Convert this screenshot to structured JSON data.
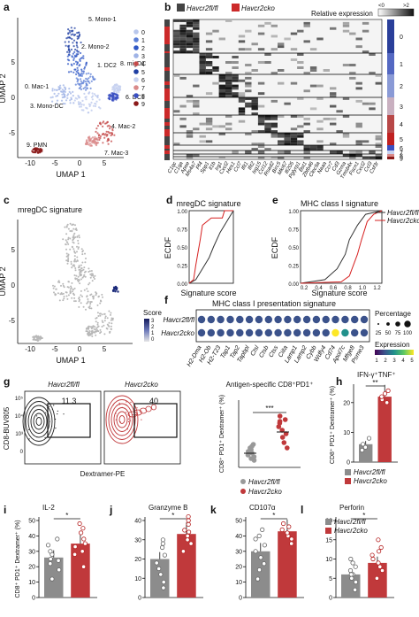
{
  "panels": {
    "a": {
      "letter": "a",
      "xlabel": "UMAP 1",
      "ylabel": "UMAP 2",
      "xticks": [
        "-10",
        "-5",
        "0",
        "5"
      ],
      "yticks": [
        "-5",
        "0",
        "5"
      ],
      "clusters": [
        {
          "label": "5. Mono-1",
          "color": "#1f3fa3"
        },
        {
          "label": "2. Mono-2",
          "color": "#2f57c5"
        },
        {
          "label": "1. DC2",
          "color": "#5c7fd6"
        },
        {
          "label": "8. migDC",
          "color": "#3a4fc2"
        },
        {
          "label": "3. Mono-DC",
          "color": "#9fb3e6"
        },
        {
          "label": "6. DC1",
          "color": "#c7d2f0"
        },
        {
          "label": "0. Mac-1",
          "color": "#b9c7ec"
        },
        {
          "label": "4. Mac-2",
          "color": "#c44a4a"
        },
        {
          "label": "7. Mac-3",
          "color": "#d98a8a"
        },
        {
          "label": "9. PMN",
          "color": "#8b1a1a"
        }
      ],
      "legend_numbers": [
        "0",
        "1",
        "2",
        "3",
        "4",
        "5",
        "6",
        "7",
        "8",
        "9"
      ]
    },
    "b": {
      "letter": "b",
      "legend_items": [
        {
          "label": "Havcr2fl/fl",
          "color": "#444444"
        },
        {
          "label": "Havcr2cko",
          "color": "#cc2a2a"
        }
      ],
      "relexp_label": "Relative expression",
      "relexp_min": "<0",
      "relexp_max": ">2",
      "cluster_numbers": [
        "0",
        "1",
        "2",
        "3",
        "4",
        "5",
        "6",
        "7",
        "8",
        "9"
      ],
      "genes": [
        "C1qc",
        "C1qa",
        "Apoe",
        "Ms4a7",
        "Pf4",
        "Spp1",
        "Il1b",
        "Irg1",
        "Cxcl2",
        "Hes1",
        "Ccl7",
        "Ifit1",
        "Ifit2",
        "Isg15",
        "Ccl12",
        "Rsad2",
        "Birc5",
        "Mki67",
        "Ifi205",
        "Pglyrp1",
        "Bst1",
        "Zbtb46",
        "Clec9a",
        "Naaa",
        "Ccr7",
        "Cd3",
        "Gzma",
        "Tmsb4x",
        "Fscn1",
        "Cxcl2",
        "Ccl3",
        "Csf3r"
      ]
    },
    "c": {
      "letter": "c",
      "title": "mregDC signature",
      "xlabel": "UMAP 1",
      "ylabel": "UMAP 2",
      "xticks": [
        "-10",
        "-5",
        "0",
        "5"
      ],
      "yticks": [
        "-5",
        "0",
        "5"
      ],
      "score_label": "Score",
      "score_ticks": [
        "3",
        "2",
        "1",
        "0"
      ]
    },
    "d": {
      "letter": "d",
      "title": "mregDC signature",
      "xlabel": "Signature score",
      "ylabel": "ECDF",
      "yticks": [
        "0.00",
        "0.25",
        "0.50",
        "0.75",
        "1.00"
      ]
    },
    "e": {
      "letter": "e",
      "title": "MHC class I signature",
      "xlabel": "Signature score",
      "ylabel": "ECDF",
      "xticks": [
        "0.2",
        "0.4",
        "0.6",
        "0.8",
        "1.0",
        "1.2"
      ],
      "yticks": [
        "0.00",
        "0.25",
        "0.50",
        "0.75",
        "1.00"
      ],
      "legend": [
        "Havcr2fl/fl",
        "Havcr2cko"
      ]
    },
    "f": {
      "letter": "f",
      "title": "MHC class I presentation signature",
      "rows": [
        "Havcr2fl/fl",
        "Havcr2cko"
      ],
      "genes": [
        "H2-Dma",
        "H2-Ob",
        "H2-T23",
        "Tap1",
        "Tap2",
        "Tapbpl",
        "Ctsl",
        "Ctsb",
        "Ctss",
        "Ciita",
        "Lamp1",
        "Lamp2",
        "Cybb",
        "Wdfy4",
        "Cd74",
        "Apol7c",
        "Mfge8",
        "Psme3"
      ],
      "rows_values": [
        [
          1.6,
          1.8,
          1.7,
          1.9,
          1.8,
          1.7,
          1.8,
          1.7,
          1.8,
          1.9,
          1.7,
          1.6,
          1.8,
          1.9,
          2.0,
          1.7,
          1.6,
          1.7
        ],
        [
          2.0,
          2.1,
          1.9,
          2.2,
          2.0,
          1.9,
          2.1,
          1.9,
          2.0,
          2.2,
          2.0,
          1.9,
          2.1,
          2.2,
          4.5,
          2.6,
          1.8,
          1.9
        ]
      ],
      "percentage_label": "Percentage",
      "percentage_ticks": [
        "25",
        "50",
        "75",
        "100"
      ],
      "expression_label": "Expression",
      "expression_ticks": [
        "1",
        "2",
        "3",
        "4",
        "5"
      ]
    },
    "g": {
      "letter": "g",
      "flow_left_title": "Havcr2fl/fl",
      "flow_right_title": "Havcr2cko",
      "gate_left": "11.3",
      "gate_right": "40",
      "ylabel": "CD8-BUV805",
      "xlabel": "Dextramer-PE",
      "flow_ticks_y": [
        "10⁵",
        "10⁴",
        "10³",
        "0"
      ],
      "strip_title": "Antigen-specific CD8⁺PD1⁺",
      "strip_ylabel": "CD8⁺ PD1⁺ Dextramer⁺ (%)",
      "strip_sig": "***",
      "legend": [
        "Havcr2fl/fl",
        "Havcr2cko"
      ]
    },
    "h": {
      "letter": "h",
      "title": "IFN-γ⁺TNF⁺",
      "ylabel": "CD8⁺ PD1⁺ Dextramer⁺ (%)",
      "sig": "**",
      "yticks": [
        "0",
        "10",
        "20"
      ],
      "ylim": [
        0,
        25
      ],
      "bars": [
        6,
        22
      ],
      "points_flfl": [
        4,
        5,
        6,
        8
      ],
      "points_cko": [
        20,
        21,
        22,
        23,
        24
      ],
      "legend": [
        "Havcr2fl/fl",
        "Havcr2cko"
      ]
    },
    "i": {
      "letter": "i",
      "title": "IL-2",
      "ylabel": "CD8⁺ PD1⁺ Dextramer⁺ (%)",
      "sig": "*",
      "yticks": [
        "0",
        "10",
        "20",
        "30",
        "40",
        "50"
      ],
      "ylim": [
        0,
        50
      ],
      "bars": [
        26,
        35
      ],
      "points_flfl": [
        12,
        18,
        22,
        24,
        25,
        28,
        30,
        34,
        38
      ],
      "points_cko": [
        20,
        28,
        30,
        33,
        35,
        38,
        42,
        45,
        48
      ]
    },
    "j": {
      "letter": "j",
      "title": "Granzyme B",
      "sig": "*",
      "yticks": [
        "0",
        "10",
        "20",
        "30",
        "40"
      ],
      "ylim": [
        0,
        40
      ],
      "bars": [
        20,
        33
      ],
      "points_flfl": [
        5,
        8,
        12,
        15,
        18,
        22,
        26,
        28,
        30
      ],
      "points_cko": [
        24,
        28,
        30,
        32,
        34,
        35,
        38,
        40,
        42
      ]
    },
    "k": {
      "letter": "k",
      "title": "CD107α",
      "sig": "*",
      "yticks": [
        "0",
        "10",
        "20",
        "30",
        "40",
        "50"
      ],
      "ylim": [
        0,
        50
      ],
      "bars": [
        30,
        43
      ],
      "points_flfl": [
        12,
        18,
        22,
        26,
        30,
        34,
        38,
        40,
        44
      ],
      "points_cko": [
        35,
        38,
        40,
        42,
        44,
        46,
        48
      ]
    },
    "l": {
      "letter": "l",
      "title": "Perforin",
      "sig": "*",
      "yticks": [
        "0",
        "5",
        "10",
        "15",
        "20"
      ],
      "ylim": [
        0,
        20
      ],
      "bars": [
        6,
        9
      ],
      "points_flfl": [
        2,
        4,
        5,
        6,
        6,
        7,
        8,
        9,
        10
      ],
      "points_cko": [
        5,
        7,
        8,
        9,
        10,
        11,
        12,
        13,
        15
      ],
      "legend": [
        "Havcr2fl/fl",
        "Havcr2cko"
      ]
    }
  },
  "colors": {
    "flfl": "#8c8c8c",
    "cko": "#c0393b",
    "cko_point": "#b52222",
    "flfl_point": "#666666"
  }
}
